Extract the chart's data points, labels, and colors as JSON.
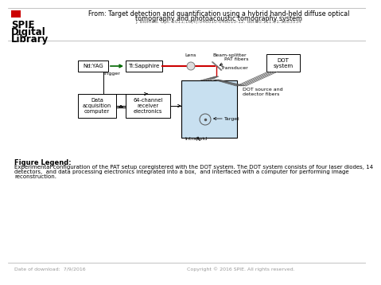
{
  "header_title_line1": "From: Target detection and quantification using a hybrid hand-held diffuse optical",
  "header_title_line2": "tomography and photoacoustic tomography system",
  "header_subtitle": "J. Biomed. Opt. 2011;16(4):046010-046010-12. doi:10.1117/1.3583534",
  "spie_logo_lines": [
    "SPIE",
    "Digital",
    "Library"
  ],
  "figure_legend_title": "Figure Legend:",
  "figure_legend_text1": "Experimental configuration of the PAT setup coregistered with the DOT system. The DOT system consists of four laser diodes, 14",
  "figure_legend_text2": "detectors,  and data processing electronics integrated into a box,  and interfaced with a computer for performing image",
  "figure_legend_text3": "reconstruction.",
  "footer_left": "Date of download:  7/9/2016",
  "footer_right": "Copyright © 2016 SPIE. All rights reserved.",
  "bg_color": "#ffffff",
  "border_color": "#aaaaaa",
  "text_color": "#000000",
  "gray_text": "#999999",
  "red_color": "#cc0000",
  "green_color": "#006600",
  "light_blue": "#c8e0f0",
  "box_edge": "#000000"
}
